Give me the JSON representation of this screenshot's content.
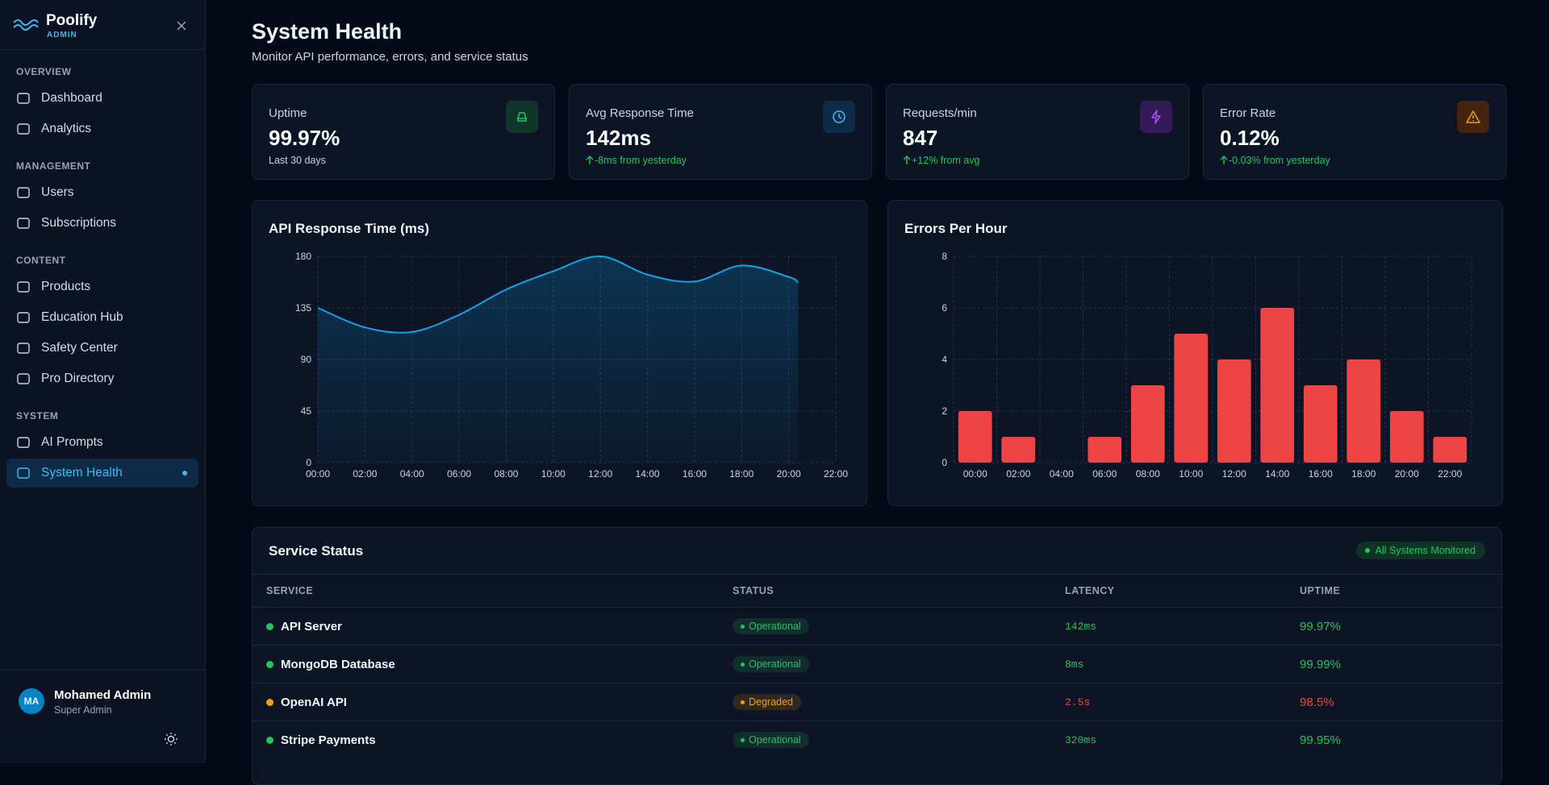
{
  "sidebar": {
    "brand": "Poolify",
    "brand_sub": "ADMIN",
    "sections": [
      {
        "label": "OVERVIEW",
        "items": [
          "Dashboard",
          "Analytics"
        ]
      },
      {
        "label": "MANAGEMENT",
        "items": [
          "Users",
          "Subscriptions"
        ]
      },
      {
        "label": "CONTENT",
        "items": [
          "Products",
          "Education Hub",
          "Safety Center",
          "Pro Directory"
        ]
      },
      {
        "label": "SYSTEM",
        "items": [
          "AI Prompts",
          "System Health"
        ]
      }
    ],
    "active": "System Health",
    "user": {
      "initials": "MA",
      "name": "Mohamed Admin",
      "role": "Super Admin"
    }
  },
  "header": {
    "title": "System Health",
    "subtitle": "Monitor API performance, errors, and service status"
  },
  "stats": [
    {
      "label": "Uptime",
      "value": "99.97%",
      "sub": "Last 30 days",
      "sub_color": "#cbd5e1",
      "trend_icon": false,
      "icon_color": "#22c55e",
      "icon_bg": "#10352a"
    },
    {
      "label": "Avg Response Time",
      "value": "142ms",
      "sub": "-8ms from yesterday",
      "sub_color": "#22c55e",
      "trend_icon": true,
      "icon_color": "#38bdf8",
      "icon_bg": "#0d2c48"
    },
    {
      "label": "Requests/min",
      "value": "847",
      "sub": "+12% from avg",
      "sub_color": "#22c55e",
      "trend_icon": true,
      "icon_color": "#a855f7",
      "icon_bg": "#351a58"
    },
    {
      "label": "Error Rate",
      "value": "0.12%",
      "sub": "-0.03% from yesterday",
      "sub_color": "#22c55e",
      "trend_icon": true,
      "icon_color": "#f59e0b",
      "icon_bg": "#45240f"
    }
  ],
  "chart_data": [
    {
      "type": "line",
      "title": "API Response Time (ms)",
      "color": "#0ea5e9",
      "grid": true,
      "x": [
        0,
        2,
        4,
        6,
        8,
        10,
        12,
        14,
        16,
        18,
        20,
        20.4
      ],
      "values": [
        135,
        118,
        114,
        129,
        151,
        167,
        180,
        164,
        158,
        172,
        162,
        157
      ],
      "xlim": [
        0,
        22
      ],
      "xticks": [
        {
          "value": 0,
          "label": "00:00"
        },
        {
          "value": 2,
          "label": "02:00"
        },
        {
          "value": 4,
          "label": "04:00"
        },
        {
          "value": 6,
          "label": "06:00"
        },
        {
          "value": 8,
          "label": "08:00"
        },
        {
          "value": 10,
          "label": "10:00"
        },
        {
          "value": 12,
          "label": "12:00"
        },
        {
          "value": 14,
          "label": "14:00"
        },
        {
          "value": 16,
          "label": "16:00"
        },
        {
          "value": 18,
          "label": "18:00"
        },
        {
          "value": 20,
          "label": "20:00"
        },
        {
          "value": 22,
          "label": "22:00"
        }
      ],
      "ylim": [
        0,
        180
      ],
      "yticks": [
        0,
        45,
        90,
        135,
        180
      ]
    },
    {
      "type": "bar",
      "title": "Errors Per Hour",
      "color": "#ef4444",
      "grid": true,
      "categories": [
        "00:00",
        "02:00",
        "04:00",
        "06:00",
        "08:00",
        "10:00",
        "12:00",
        "14:00",
        "16:00",
        "18:00",
        "20:00",
        "22:00"
      ],
      "values": [
        2,
        1,
        0,
        1,
        3,
        5,
        4,
        6,
        3,
        4,
        2,
        1
      ],
      "ylim": [
        0,
        8
      ],
      "yticks": [
        0,
        2,
        4,
        6,
        8
      ]
    }
  ],
  "services": {
    "title": "Service Status",
    "badge": "All Systems Monitored",
    "columns": [
      "SERVICE",
      "STATUS",
      "LATENCY",
      "UPTIME"
    ],
    "rows": [
      {
        "service": "API Server",
        "status": "Operational",
        "latency": "142ms",
        "uptime": "99.97%",
        "status_color": "#22c55e",
        "metric_color": "#22c55e"
      },
      {
        "service": "MongoDB Database",
        "status": "Operational",
        "latency": "8ms",
        "uptime": "99.99%",
        "status_color": "#22c55e",
        "metric_color": "#22c55e"
      },
      {
        "service": "OpenAI API",
        "status": "Degraded",
        "latency": "2.5s",
        "uptime": "98.5%",
        "status_color": "#f59e0b",
        "metric_color": "#ef4444"
      },
      {
        "service": "Stripe Payments",
        "status": "Operational",
        "latency": "320ms",
        "uptime": "99.95%",
        "status_color": "#22c55e",
        "metric_color": "#22c55e"
      }
    ]
  }
}
